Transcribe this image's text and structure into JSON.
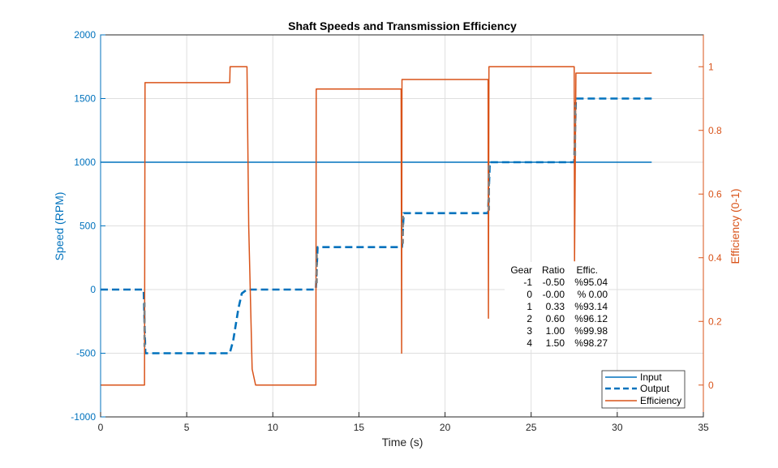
{
  "chart_data": {
    "type": "line",
    "title": "Shaft Speeds and Transmission Efficiency",
    "xlabel": "Time (s)",
    "ylabel_left": "Speed (RPM)",
    "ylabel_right": "Efficiency (0-1)",
    "xlim": [
      0,
      35
    ],
    "ylim_left": [
      -1000,
      2000
    ],
    "ylim_right": [
      -0.1,
      1.1
    ],
    "x_ticks": [
      0,
      5,
      10,
      15,
      20,
      25,
      30,
      35
    ],
    "y_left_ticks": [
      -1000,
      -500,
      0,
      500,
      1000,
      1500,
      2000
    ],
    "y_right_ticks": [
      0,
      0.2,
      0.4,
      0.6,
      0.8,
      1
    ],
    "x_tick_labels": [
      "0",
      "5",
      "10",
      "15",
      "20",
      "25",
      "30",
      "35"
    ],
    "y_left_tick_labels": [
      "-1000",
      "-500",
      "0",
      "500",
      "1000",
      "1500",
      "2000"
    ],
    "y_right_tick_labels": [
      "0",
      "0.2",
      "0.4",
      "0.6",
      "0.8",
      "1"
    ],
    "grid": true,
    "legend_position": "bottom-right",
    "colors": {
      "input": "#0072BD",
      "output": "#0072BD",
      "efficiency": "#D95319",
      "left_axis": "#0072BD",
      "right_axis": "#D95319",
      "transition": "#808080"
    },
    "series": [
      {
        "name": "Input",
        "axis": "left",
        "style": "solid",
        "x": [
          0,
          32
        ],
        "y": [
          1000,
          1000
        ]
      },
      {
        "name": "Output",
        "axis": "left",
        "style": "dashed",
        "x": [
          0,
          2.5,
          2.6,
          7.5,
          7.7,
          8.0,
          8.2,
          8.5,
          12.5,
          12.6,
          17.5,
          17.6,
          22.5,
          22.6,
          27.5,
          27.6,
          32
        ],
        "y": [
          0,
          0,
          -500,
          -500,
          -400,
          -150,
          -30,
          0,
          0,
          333,
          333,
          600,
          600,
          1000,
          1000,
          1500,
          1500
        ]
      },
      {
        "name": "Efficiency",
        "axis": "right",
        "style": "solid",
        "x": [
          0,
          2.55,
          2.58,
          2.65,
          7.5,
          7.52,
          8.5,
          8.6,
          8.8,
          9.0,
          12.5,
          12.52,
          12.6,
          17.45,
          17.48,
          17.5,
          17.6,
          22.5,
          22.52,
          22.55,
          22.65,
          27.5,
          27.52,
          27.6,
          32
        ],
        "y": [
          0,
          0,
          0.95,
          0.95,
          0.95,
          1.0,
          1.0,
          0.5,
          0.05,
          0.0,
          0.0,
          0.93,
          0.93,
          0.93,
          0.1,
          0.96,
          0.96,
          0.96,
          0.21,
          1.0,
          1.0,
          1.0,
          0.39,
          0.98,
          0.98
        ]
      }
    ],
    "transitions": [
      {
        "x": 2.55,
        "y_from": -100,
        "y_to": -450
      },
      {
        "x": 12.55,
        "y_from": 50,
        "y_to": 280
      },
      {
        "x": 17.55,
        "y_from": 360,
        "y_to": 580
      },
      {
        "x": 22.55,
        "y_from": 620,
        "y_to": 980
      },
      {
        "x": 27.55,
        "y_from": 1050,
        "y_to": 1450
      }
    ],
    "gear_table": {
      "header": [
        "Gear",
        "Ratio",
        "Effic."
      ],
      "rows": [
        [
          "-1",
          "-0.50",
          "%95.04"
        ],
        [
          "0",
          "-0.00",
          "% 0.00"
        ],
        [
          "1",
          "0.33",
          "%93.14"
        ],
        [
          "2",
          "0.60",
          "%96.12"
        ],
        [
          "3",
          "1.00",
          "%99.98"
        ],
        [
          "4",
          "1.50",
          "%98.27"
        ]
      ]
    },
    "legend": [
      "Input",
      "Output",
      "Efficiency"
    ]
  }
}
